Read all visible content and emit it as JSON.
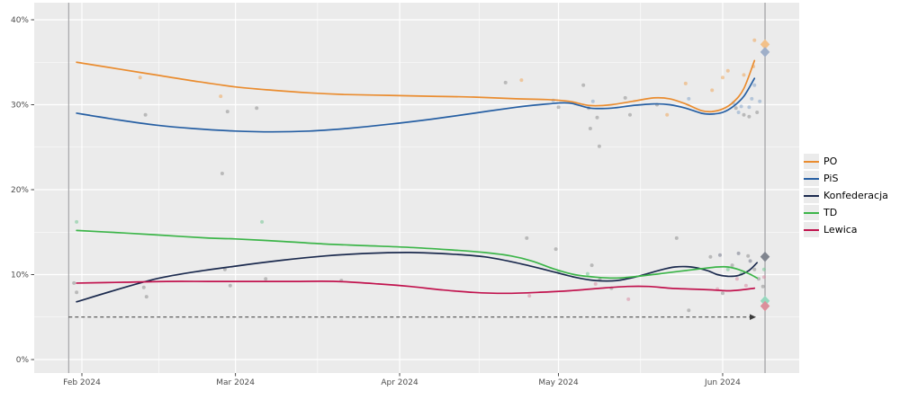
{
  "page": {
    "background": "#FFFFFF"
  },
  "chart_data": {
    "type": "line",
    "title": "",
    "panel": {
      "background": "#EBEBEB",
      "grid_color": "#FFFFFF"
    },
    "y_axis": {
      "unit": "%",
      "range": [
        0,
        40
      ],
      "ticks": [
        {
          "label": "0%",
          "value": 0
        },
        {
          "label": "10%",
          "value": 10
        },
        {
          "label": "20%",
          "value": 20
        },
        {
          "label": "30%",
          "value": 30
        },
        {
          "label": "40%",
          "value": 40
        }
      ],
      "minor_values": [
        5,
        15,
        25,
        35
      ]
    },
    "x_axis": {
      "ticks": [
        {
          "label": "Feb 2024",
          "day": 0
        },
        {
          "label": "Mar 2024",
          "day": 29
        },
        {
          "label": "Apr 2024",
          "day": 60
        },
        {
          "label": "May 2024",
          "day": 90
        },
        {
          "label": "Jun 2024",
          "day": 121
        }
      ]
    },
    "reference_lines": {
      "threshold": {
        "value": 5,
        "style": "dashed",
        "color": "#3A3A3A"
      },
      "start_vline_day": -2.5,
      "election_vline_day": 129,
      "vline_color": "#97979B"
    },
    "legend": {
      "position": "right",
      "items": [
        "PO",
        "PiS",
        "Konfederacja",
        "TD",
        "Lewica"
      ]
    },
    "series": [
      {
        "name": "PO",
        "color": "#EA8C2F",
        "points": [
          [
            -1,
            35.0
          ],
          [
            7,
            34.2
          ],
          [
            14,
            33.5
          ],
          [
            21,
            32.8
          ],
          [
            29,
            32.1
          ],
          [
            36,
            31.7
          ],
          [
            43,
            31.4
          ],
          [
            50,
            31.2
          ],
          [
            58,
            31.1
          ],
          [
            66,
            31.0
          ],
          [
            74,
            30.9
          ],
          [
            82,
            30.7
          ],
          [
            88,
            30.6
          ],
          [
            92,
            30.4
          ],
          [
            96,
            29.9
          ],
          [
            100,
            30.0
          ],
          [
            104,
            30.4
          ],
          [
            108,
            30.8
          ],
          [
            111,
            30.7
          ],
          [
            114,
            30.1
          ],
          [
            117,
            29.3
          ],
          [
            119,
            29.2
          ],
          [
            121,
            29.5
          ],
          [
            123,
            30.3
          ],
          [
            125,
            31.9
          ],
          [
            127,
            35.2
          ]
        ]
      },
      {
        "name": "PiS",
        "color": "#265FA3",
        "points": [
          [
            -1,
            29.0
          ],
          [
            7,
            28.2
          ],
          [
            14,
            27.6
          ],
          [
            21,
            27.2
          ],
          [
            29,
            26.9
          ],
          [
            36,
            26.8
          ],
          [
            43,
            26.9
          ],
          [
            50,
            27.2
          ],
          [
            58,
            27.7
          ],
          [
            66,
            28.3
          ],
          [
            74,
            29.0
          ],
          [
            82,
            29.7
          ],
          [
            88,
            30.1
          ],
          [
            92,
            30.2
          ],
          [
            96,
            29.6
          ],
          [
            100,
            29.6
          ],
          [
            104,
            29.9
          ],
          [
            108,
            30.1
          ],
          [
            111,
            30.0
          ],
          [
            114,
            29.6
          ],
          [
            117,
            29.0
          ],
          [
            119,
            28.9
          ],
          [
            121,
            29.1
          ],
          [
            123,
            29.8
          ],
          [
            125,
            31.0
          ],
          [
            127,
            33.1
          ]
        ]
      },
      {
        "name": "Konfederacja",
        "color": "#1B2A4E",
        "points": [
          [
            -1,
            6.8
          ],
          [
            7,
            8.3
          ],
          [
            14,
            9.5
          ],
          [
            21,
            10.3
          ],
          [
            29,
            11.0
          ],
          [
            38,
            11.7
          ],
          [
            46,
            12.2
          ],
          [
            54,
            12.5
          ],
          [
            62,
            12.6
          ],
          [
            70,
            12.4
          ],
          [
            76,
            12.1
          ],
          [
            82,
            11.4
          ],
          [
            88,
            10.5
          ],
          [
            93,
            9.7
          ],
          [
            97,
            9.3
          ],
          [
            101,
            9.3
          ],
          [
            105,
            9.8
          ],
          [
            109,
            10.5
          ],
          [
            112,
            10.9
          ],
          [
            115,
            10.9
          ],
          [
            118,
            10.5
          ],
          [
            120,
            10.0
          ],
          [
            122,
            9.8
          ],
          [
            124,
            9.9
          ],
          [
            126,
            10.5
          ],
          [
            127.5,
            11.4
          ]
        ]
      },
      {
        "name": "TD",
        "color": "#3CB549",
        "points": [
          [
            -1,
            15.2
          ],
          [
            8,
            14.9
          ],
          [
            16,
            14.6
          ],
          [
            24,
            14.3
          ],
          [
            29,
            14.2
          ],
          [
            38,
            13.9
          ],
          [
            46,
            13.6
          ],
          [
            54,
            13.4
          ],
          [
            62,
            13.2
          ],
          [
            70,
            12.9
          ],
          [
            76,
            12.6
          ],
          [
            81,
            12.2
          ],
          [
            85,
            11.6
          ],
          [
            89,
            10.7
          ],
          [
            93,
            10.0
          ],
          [
            97,
            9.7
          ],
          [
            101,
            9.6
          ],
          [
            105,
            9.8
          ],
          [
            109,
            10.1
          ],
          [
            113,
            10.4
          ],
          [
            117,
            10.7
          ],
          [
            120,
            10.9
          ],
          [
            122,
            10.9
          ],
          [
            124,
            10.6
          ],
          [
            126,
            10.1
          ],
          [
            127.5,
            9.6
          ]
        ]
      },
      {
        "name": "Lewica",
        "color": "#C1134E",
        "points": [
          [
            -1,
            9.0
          ],
          [
            8,
            9.1
          ],
          [
            16,
            9.2
          ],
          [
            24,
            9.2
          ],
          [
            32,
            9.2
          ],
          [
            40,
            9.2
          ],
          [
            48,
            9.2
          ],
          [
            56,
            8.9
          ],
          [
            62,
            8.6
          ],
          [
            68,
            8.2
          ],
          [
            74,
            7.9
          ],
          [
            80,
            7.8
          ],
          [
            86,
            7.9
          ],
          [
            92,
            8.1
          ],
          [
            98,
            8.4
          ],
          [
            103,
            8.6
          ],
          [
            107,
            8.6
          ],
          [
            111,
            8.4
          ],
          [
            115,
            8.3
          ],
          [
            119,
            8.2
          ],
          [
            122,
            8.1
          ],
          [
            124.5,
            8.2
          ],
          [
            127,
            8.4
          ]
        ]
      }
    ],
    "election_results": [
      {
        "party": "PO",
        "value": 37.1,
        "color": "#F3C189",
        "day": 129
      },
      {
        "party": "PiS",
        "value": 36.2,
        "color": "#9FAFC9",
        "day": 129
      },
      {
        "party": "Konfederacja",
        "value": 12.1,
        "color": "#80858F",
        "day": 129
      },
      {
        "party": "TD",
        "value": 6.9,
        "color": "#96D8BE",
        "day": 129
      },
      {
        "party": "Lewica",
        "value": 6.3,
        "color": "#DB8F9B",
        "day": 129
      }
    ],
    "poll_dots": {
      "colors": {
        "po": "#EFA75C",
        "pis": "#86A5CB",
        "konf": "#74798A",
        "td": "#74C694",
        "lew": "#D98CA4",
        "gray": "#909090"
      },
      "points": [
        [
          -1,
          16.2,
          "td"
        ],
        [
          -1.5,
          9.0,
          "gray"
        ],
        [
          -1,
          7.9,
          "gray"
        ],
        [
          11,
          33.2,
          "po"
        ],
        [
          12,
          28.8,
          "gray"
        ],
        [
          11.7,
          8.5,
          "gray"
        ],
        [
          12.2,
          7.4,
          "gray"
        ],
        [
          26.2,
          31.0,
          "po"
        ],
        [
          27.5,
          29.2,
          "gray"
        ],
        [
          26.5,
          21.9,
          "gray"
        ],
        [
          27,
          10.6,
          "gray"
        ],
        [
          28,
          8.7,
          "gray"
        ],
        [
          33,
          29.6,
          "gray"
        ],
        [
          34,
          16.2,
          "td"
        ],
        [
          34.7,
          9.5,
          "gray"
        ],
        [
          49,
          9.3,
          "gray"
        ],
        [
          80,
          32.6,
          "gray"
        ],
        [
          83,
          32.9,
          "po"
        ],
        [
          84,
          14.3,
          "gray"
        ],
        [
          84.5,
          7.5,
          "lew"
        ],
        [
          89,
          30.5,
          "pis"
        ],
        [
          90,
          29.7,
          "gray"
        ],
        [
          90,
          10.3,
          "td"
        ],
        [
          89.5,
          13.0,
          "gray"
        ],
        [
          94.7,
          32.3,
          "gray"
        ],
        [
          95.7,
          29.6,
          "gray"
        ],
        [
          96.5,
          30.4,
          "pis"
        ],
        [
          97.3,
          28.5,
          "gray"
        ],
        [
          96,
          27.2,
          "gray"
        ],
        [
          97.7,
          25.1,
          "gray"
        ],
        [
          95.5,
          10.1,
          "td"
        ],
        [
          96.3,
          11.1,
          "gray"
        ],
        [
          97,
          8.9,
          "lew"
        ],
        [
          97.8,
          9.4,
          "gray"
        ],
        [
          100,
          8.4,
          "gray"
        ],
        [
          103.2,
          7.1,
          "lew"
        ],
        [
          102.6,
          30.8,
          "gray"
        ],
        [
          103.5,
          28.8,
          "gray"
        ],
        [
          108.6,
          30.0,
          "gray"
        ],
        [
          112.3,
          14.3,
          "gray"
        ],
        [
          114.6,
          5.8,
          "gray"
        ],
        [
          114,
          32.5,
          "po"
        ],
        [
          114.6,
          30.7,
          "pis"
        ],
        [
          110.5,
          28.8,
          "po"
        ],
        [
          119,
          31.7,
          "po"
        ],
        [
          121,
          33.2,
          "po"
        ],
        [
          122,
          34.0,
          "po"
        ],
        [
          125,
          33.5,
          "po"
        ],
        [
          126.8,
          34.5,
          "po"
        ],
        [
          127,
          37.6,
          "po"
        ],
        [
          123,
          30.2,
          "pis"
        ],
        [
          123.5,
          29.6,
          "gray"
        ],
        [
          124,
          29.1,
          "pis"
        ],
        [
          124.5,
          29.8,
          "pis"
        ],
        [
          125,
          28.8,
          "gray"
        ],
        [
          126,
          29.7,
          "pis"
        ],
        [
          126.5,
          30.7,
          "pis"
        ],
        [
          127,
          32.3,
          "pis"
        ],
        [
          126,
          28.6,
          "gray"
        ],
        [
          127.5,
          29.1,
          "gray"
        ],
        [
          128,
          30.4,
          "pis"
        ],
        [
          118.7,
          12.1,
          "gray"
        ],
        [
          120.5,
          12.3,
          "konf"
        ],
        [
          122,
          10.6,
          "td"
        ],
        [
          122.8,
          11.1,
          "gray"
        ],
        [
          123.7,
          9.5,
          "lew"
        ],
        [
          124.5,
          10.1,
          "td"
        ],
        [
          125.4,
          8.7,
          "lew"
        ],
        [
          126.2,
          11.6,
          "konf"
        ],
        [
          127,
          10.6,
          "gray"
        ],
        [
          127.8,
          9.5,
          "gray"
        ],
        [
          120,
          8.3,
          "lew"
        ],
        [
          121,
          7.8,
          "gray"
        ],
        [
          124,
          12.5,
          "konf"
        ],
        [
          125.8,
          12.2,
          "gray"
        ],
        [
          128.8,
          10.6,
          "td"
        ],
        [
          128.8,
          9.7,
          "lew"
        ],
        [
          128.6,
          8.6,
          "gray"
        ]
      ]
    }
  }
}
